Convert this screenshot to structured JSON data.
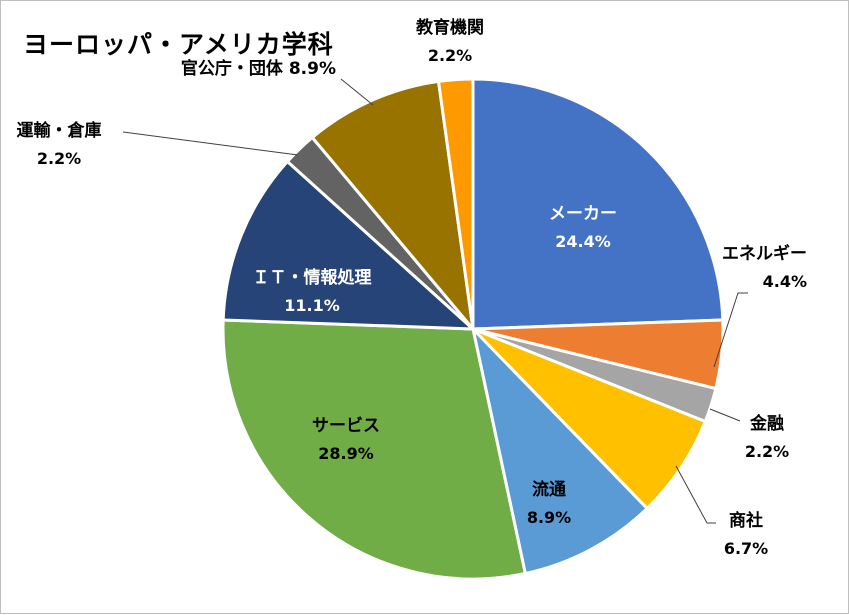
{
  "chart_data": {
    "type": "pie",
    "title": "ヨーロッパ・アメリカ学科",
    "slices": [
      {
        "label": "メーカー",
        "value": 24.4,
        "value_label": "24.4%",
        "color": "#4472C4",
        "label_text_color": "#ffffff"
      },
      {
        "label": "エネルギー",
        "value": 4.4,
        "value_label": "4.4%",
        "color": "#ED7D31",
        "label_text_color": "#000000"
      },
      {
        "label": "金融",
        "value": 2.2,
        "value_label": "2.2%",
        "color": "#A5A5A5",
        "label_text_color": "#000000"
      },
      {
        "label": "商社",
        "value": 6.7,
        "value_label": "6.7%",
        "color": "#FFC000",
        "label_text_color": "#000000"
      },
      {
        "label": "流通",
        "value": 8.9,
        "value_label": "8.9%",
        "color": "#5B9BD5",
        "label_text_color": "#000000"
      },
      {
        "label": "サービス",
        "value": 28.9,
        "value_label": "28.9%",
        "color": "#70AD47",
        "label_text_color": "#000000"
      },
      {
        "label": "ＩＴ・情報処理",
        "value": 11.1,
        "value_label": "11.1%",
        "color": "#264478",
        "label_text_color": "#ffffff"
      },
      {
        "label": "運輸・倉庫",
        "value": 2.2,
        "value_label": "2.2%",
        "color": "#636363",
        "label_text_color": "#000000"
      },
      {
        "label": "官公庁・団体",
        "value": 8.9,
        "value_label": "8.9%",
        "color": "#997300",
        "label_text_color": "#000000"
      },
      {
        "label": "教育機関",
        "value": 2.2,
        "value_label": "2.2%",
        "color": "#FF9900",
        "label_text_color": "#000000"
      }
    ]
  }
}
